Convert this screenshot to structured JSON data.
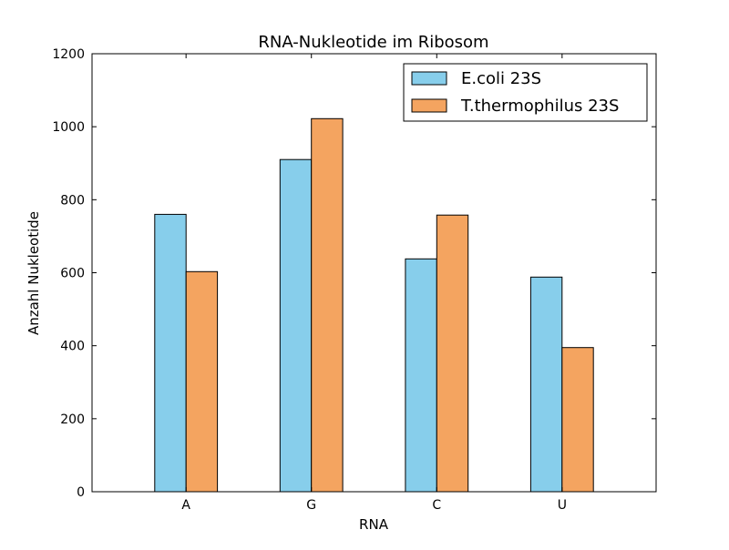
{
  "chart_data": {
    "type": "bar",
    "title": "RNA-Nukleotide im Ribosom",
    "xlabel": "RNA",
    "ylabel": "Anzahl Nukleotide",
    "categories": [
      "A",
      "G",
      "C",
      "U"
    ],
    "ylim": [
      0,
      1200
    ],
    "yticks": [
      0,
      200,
      400,
      600,
      800,
      1000,
      1200
    ],
    "grid": false,
    "legend_position": "top-right",
    "series": [
      {
        "name": "E.coli 23S",
        "color": "#87CEEB",
        "values": [
          760,
          910,
          638,
          588
        ]
      },
      {
        "name": "T.thermophilus 23S",
        "color": "#F4A460",
        "values": [
          603,
          1022,
          758,
          395
        ]
      }
    ]
  }
}
